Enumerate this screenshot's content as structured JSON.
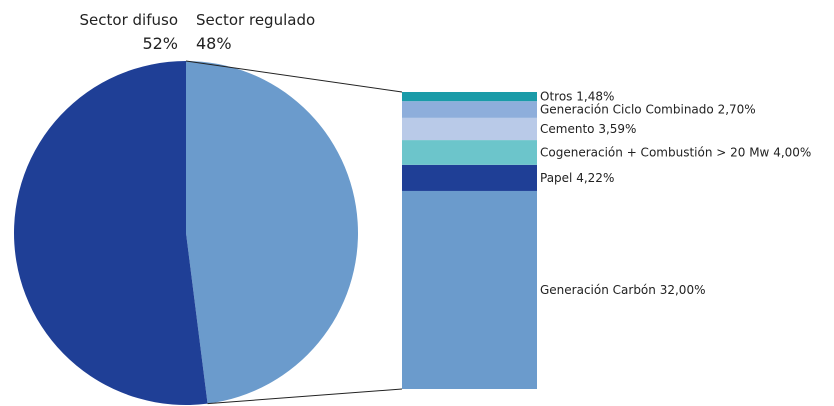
{
  "chart_data": [
    {
      "type": "pie",
      "categories": [
        "Sector difuso",
        "Sector regulado"
      ],
      "values": [
        52,
        48
      ],
      "value_labels": [
        "52%",
        "48%"
      ],
      "colors": [
        "#1f3f96",
        "#6b9bcc"
      ]
    },
    {
      "type": "stacked-bar",
      "categories": [
        "Generación Carbón",
        "Papel",
        "Cogeneración + Combustión > 20 Mw",
        "Cemento",
        "Generación Ciclo Combinado",
        "Otros"
      ],
      "values": [
        32.0,
        4.22,
        4.0,
        3.59,
        2.7,
        1.48
      ],
      "value_labels": [
        "32,00%",
        "4,22%",
        "4,00%",
        "3,59%",
        "2,70%",
        "1,48%"
      ],
      "colors": [
        "#6b9bcc",
        "#1f3f96",
        "#6cc5cb",
        "#b9cae8",
        "#8eaedb",
        "#1a9ba8"
      ]
    }
  ]
}
